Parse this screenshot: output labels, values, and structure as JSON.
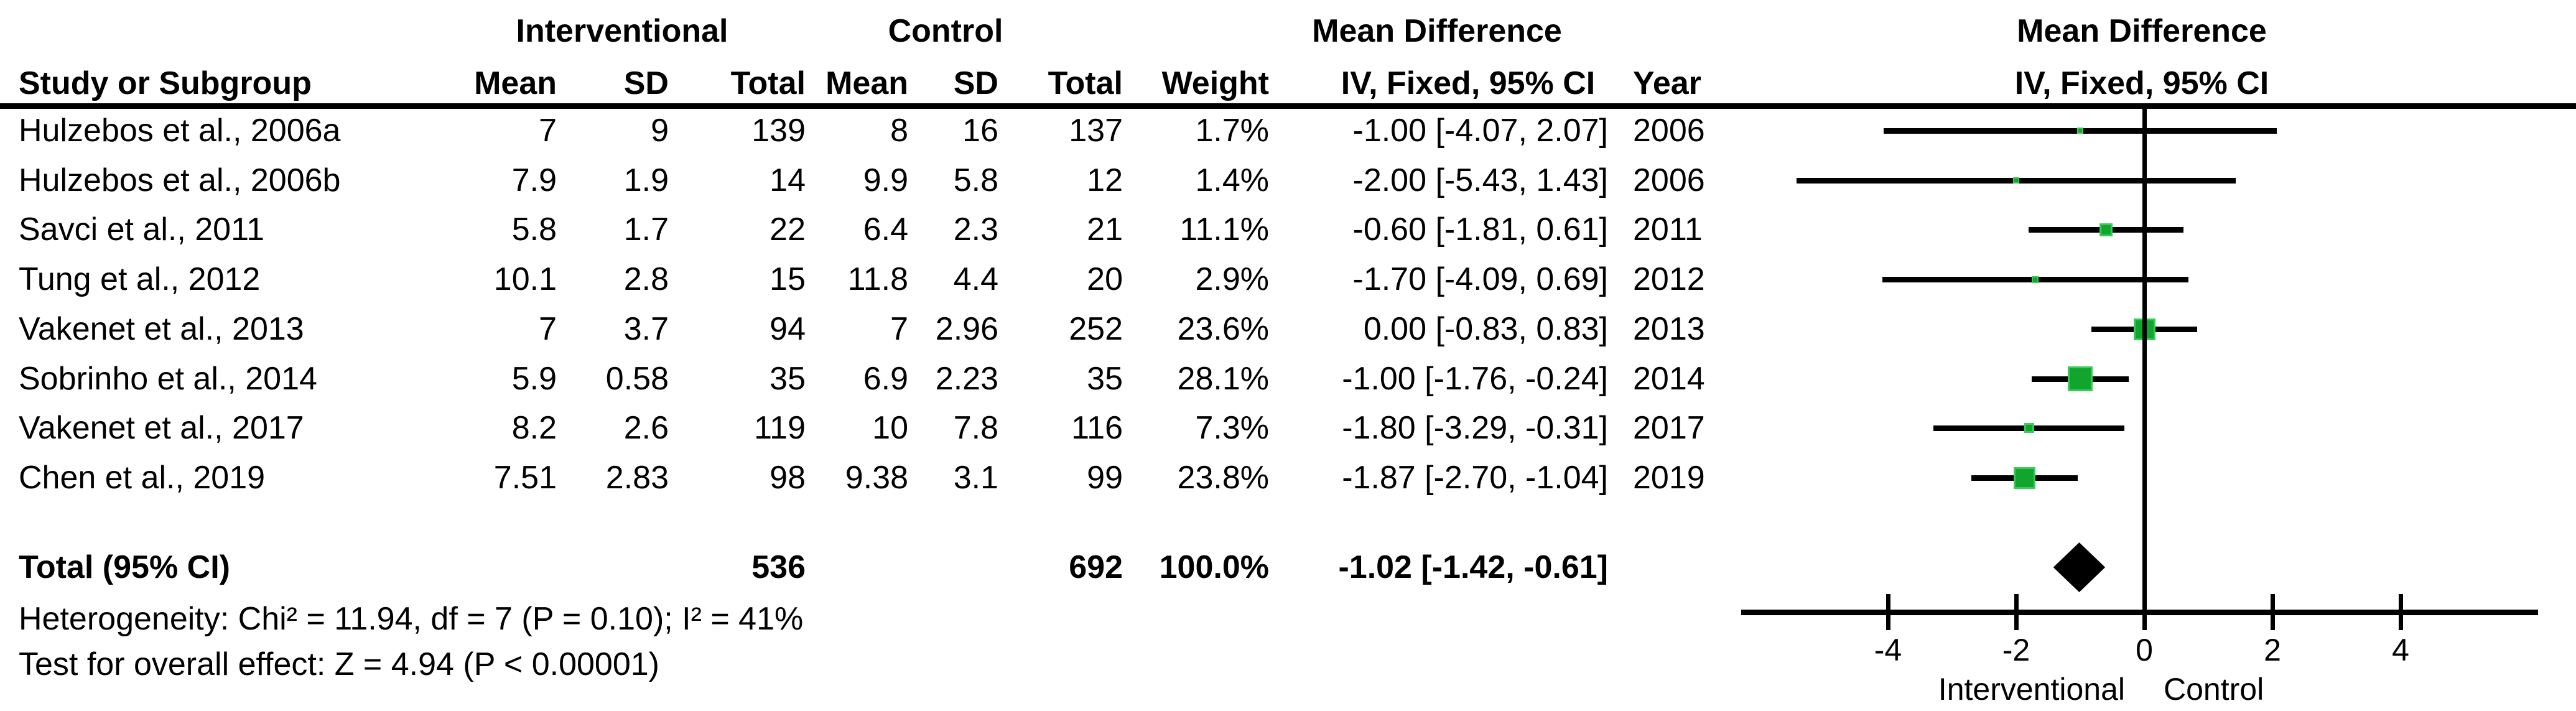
{
  "headers": {
    "group_interventional": "Interventional",
    "group_control": "Control",
    "group_mean_difference_table": "Mean Difference",
    "group_mean_difference_plot": "Mean Difference",
    "col_study": "Study or Subgroup",
    "col_int_mean": "Mean",
    "col_int_sd": "SD",
    "col_int_total": "Total",
    "col_ctrl_mean": "Mean",
    "col_ctrl_sd": "SD",
    "col_ctrl_total": "Total",
    "col_weight": "Weight",
    "col_ci": "IV, Fixed, 95% CI",
    "col_year": "Year",
    "col_plot_ci": "IV, Fixed, 95% CI"
  },
  "table": {
    "rows": [
      {
        "name": "Hulzebos et al., 2006a",
        "int_mean": "7",
        "int_sd": "9",
        "int_total": "139",
        "ctrl_mean": "8",
        "ctrl_sd": "16",
        "ctrl_total": "137",
        "weight": "1.7%",
        "ci": "-1.00 [-4.07, 2.07]",
        "year": "2006"
      },
      {
        "name": "Hulzebos et al., 2006b",
        "int_mean": "7.9",
        "int_sd": "1.9",
        "int_total": "14",
        "ctrl_mean": "9.9",
        "ctrl_sd": "5.8",
        "ctrl_total": "12",
        "weight": "1.4%",
        "ci": "-2.00 [-5.43, 1.43]",
        "year": "2006"
      },
      {
        "name": "Savci et al., 2011",
        "int_mean": "5.8",
        "int_sd": "1.7",
        "int_total": "22",
        "ctrl_mean": "6.4",
        "ctrl_sd": "2.3",
        "ctrl_total": "21",
        "weight": "11.1%",
        "ci": "-0.60 [-1.81, 0.61]",
        "year": "2011"
      },
      {
        "name": "Tung et al., 2012",
        "int_mean": "10.1",
        "int_sd": "2.8",
        "int_total": "15",
        "ctrl_mean": "11.8",
        "ctrl_sd": "4.4",
        "ctrl_total": "20",
        "weight": "2.9%",
        "ci": "-1.70 [-4.09, 0.69]",
        "year": "2012"
      },
      {
        "name": "Vakenet et al., 2013",
        "int_mean": "7",
        "int_sd": "3.7",
        "int_total": "94",
        "ctrl_mean": "7",
        "ctrl_sd": "2.96",
        "ctrl_total": "252",
        "weight": "23.6%",
        "ci": "0.00 [-0.83, 0.83]",
        "year": "2013"
      },
      {
        "name": "Sobrinho et al., 2014",
        "int_mean": "5.9",
        "int_sd": "0.58",
        "int_total": "35",
        "ctrl_mean": "6.9",
        "ctrl_sd": "2.23",
        "ctrl_total": "35",
        "weight": "28.1%",
        "ci": "-1.00 [-1.76, -0.24]",
        "year": "2014"
      },
      {
        "name": "Vakenet et al., 2017",
        "int_mean": "8.2",
        "int_sd": "2.6",
        "int_total": "119",
        "ctrl_mean": "10",
        "ctrl_sd": "7.8",
        "ctrl_total": "116",
        "weight": "7.3%",
        "ci": "-1.80 [-3.29, -0.31]",
        "year": "2017"
      },
      {
        "name": "Chen et al., 2019",
        "int_mean": "7.51",
        "int_sd": "2.83",
        "int_total": "98",
        "ctrl_mean": "9.38",
        "ctrl_sd": "3.1",
        "ctrl_total": "99",
        "weight": "23.8%",
        "ci": "-1.87 [-2.70, -1.04]",
        "year": "2019"
      }
    ],
    "total": {
      "label": "Total (95% CI)",
      "int_total": "536",
      "ctrl_total": "692",
      "weight": "100.0%",
      "ci": "-1.02 [-1.42, -0.61]"
    }
  },
  "footnotes": {
    "heterogeneity": "Heterogeneity: Chi² = 11.94, df = 7 (P = 0.10); I² = 41%",
    "overall_effect": "Test for overall effect: Z = 4.94 (P < 0.00001)"
  },
  "chart_data": {
    "type": "forest",
    "title": "Mean Difference — IV, Fixed, 95% CI",
    "effect_measure": "Mean Difference (IV, Fixed, 95% CI)",
    "x_ticks": [
      -4,
      -2,
      0,
      2,
      4
    ],
    "xlim": [
      -6.3,
      6.2
    ],
    "zero_line": 0,
    "grid": false,
    "axis_labels": {
      "left": "Interventional",
      "right": "Control"
    },
    "studies": [
      {
        "name": "Hulzebos et al., 2006a",
        "md": -1.0,
        "lo": -4.07,
        "hi": 2.07,
        "weight_pct": 1.7,
        "year": 2006
      },
      {
        "name": "Hulzebos et al., 2006b",
        "md": -2.0,
        "lo": -5.43,
        "hi": 1.43,
        "weight_pct": 1.4,
        "year": 2006
      },
      {
        "name": "Savci et al., 2011",
        "md": -0.6,
        "lo": -1.81,
        "hi": 0.61,
        "weight_pct": 11.1,
        "year": 2011
      },
      {
        "name": "Tung et al., 2012",
        "md": -1.7,
        "lo": -4.09,
        "hi": 0.69,
        "weight_pct": 2.9,
        "year": 2012
      },
      {
        "name": "Vakenet et al., 2013",
        "md": 0.0,
        "lo": -0.83,
        "hi": 0.83,
        "weight_pct": 23.6,
        "year": 2013
      },
      {
        "name": "Sobrinho et al., 2014",
        "md": -1.0,
        "lo": -1.76,
        "hi": -0.24,
        "weight_pct": 28.1,
        "year": 2014
      },
      {
        "name": "Vakenet et al., 2017",
        "md": -1.8,
        "lo": -3.29,
        "hi": -0.31,
        "weight_pct": 7.3,
        "year": 2017
      },
      {
        "name": "Chen et al., 2019",
        "md": -1.87,
        "lo": -2.7,
        "hi": -1.04,
        "weight_pct": 23.8,
        "year": 2019
      }
    ],
    "total": {
      "md": -1.02,
      "lo": -1.42,
      "hi": -0.61,
      "weight_pct": 100.0
    },
    "marker_color": "#12A52E",
    "marker_edge_color": "#39CC5A",
    "diamond_color": "#000000"
  }
}
